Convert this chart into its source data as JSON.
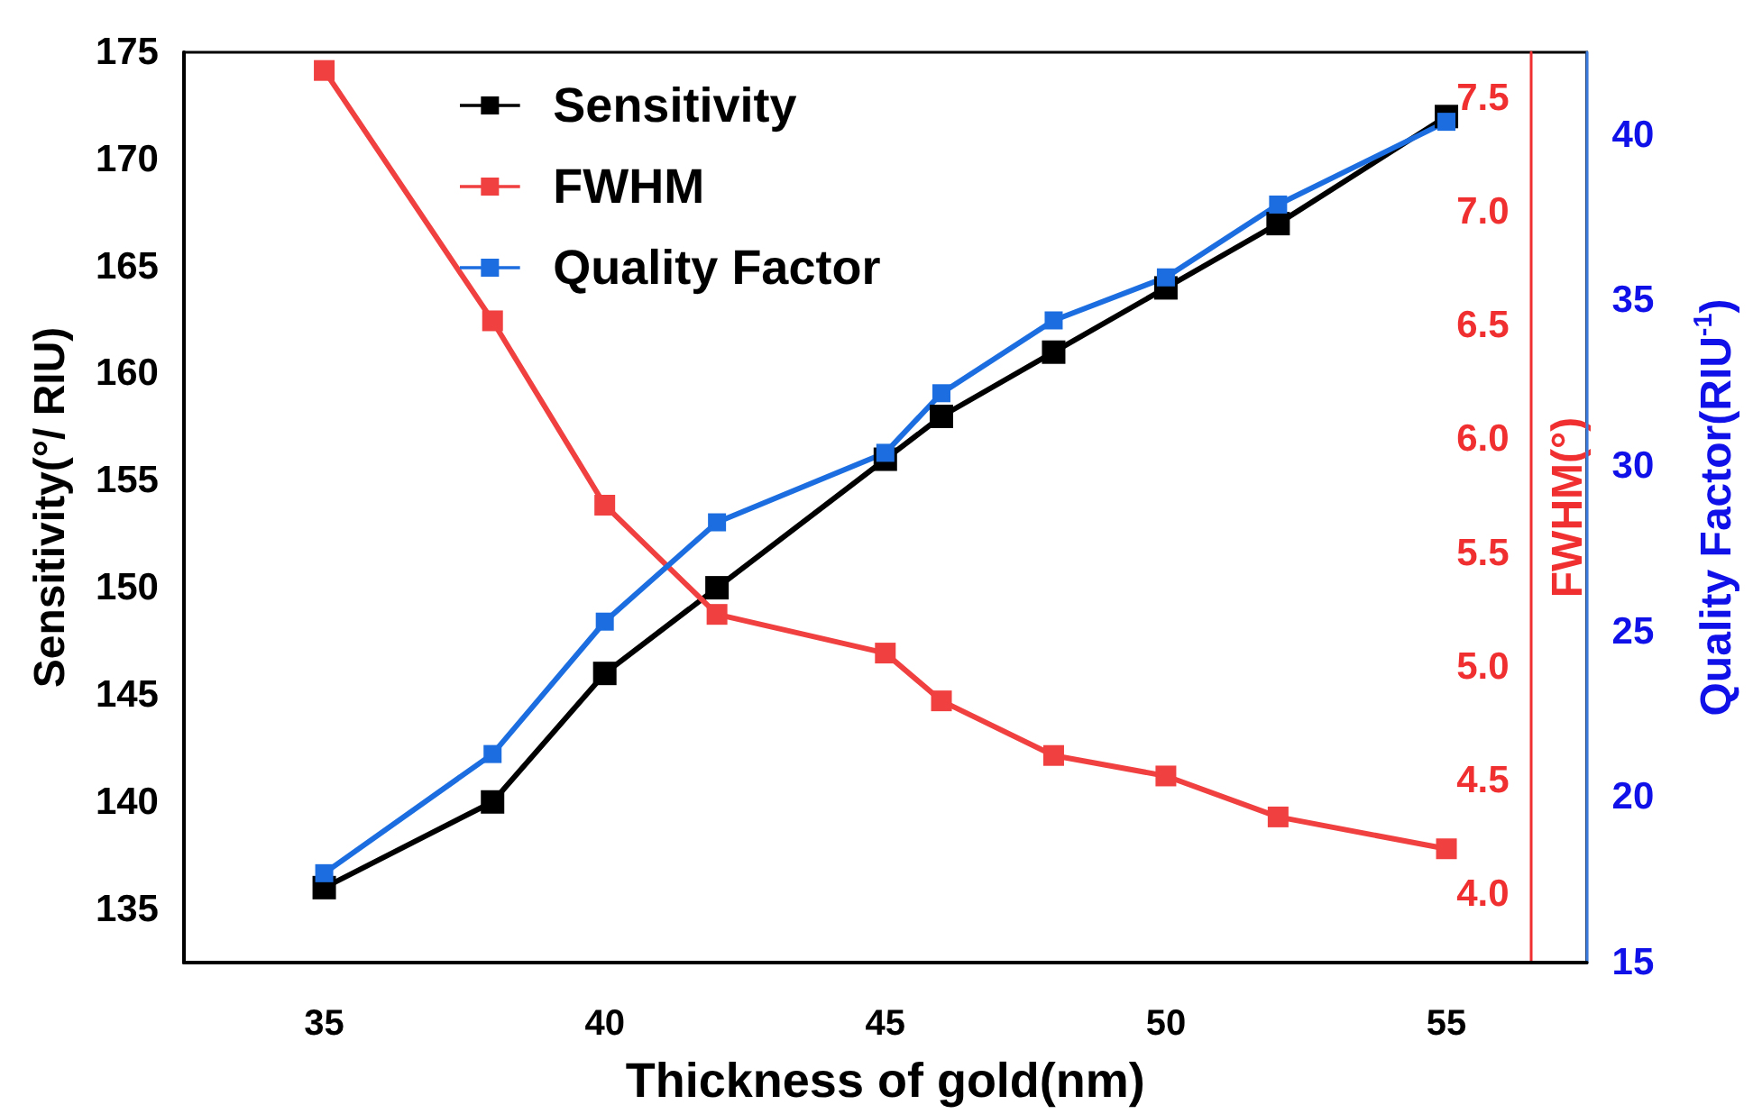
{
  "chart_data": {
    "type": "line",
    "xlabel": "Thickness of gold(nm)",
    "ylabel": "Sensitivity(°/ RIU)",
    "y2label": "FWHM(°)",
    "y3label": "Quality Factor(RIU$^{-1}$)",
    "x": [
      35,
      38,
      40,
      42,
      45,
      46,
      48,
      50,
      52,
      55
    ],
    "series": [
      {
        "name": "Sensitivity",
        "color": "#000000",
        "values": [
          136,
          140,
          146,
          150,
          156,
          158,
          161,
          164,
          167,
          172
        ]
      },
      {
        "name": "FWHM",
        "color": "#f04040",
        "axis": "y2",
        "values": [
          7.62,
          6.52,
          5.71,
          5.23,
          5.06,
          4.85,
          4.61,
          4.52,
          4.34,
          4.2
        ]
      },
      {
        "name": "Quality Factor",
        "color": "#1c6ee0",
        "axis": "y3",
        "values": [
          17.7,
          21.3,
          25.3,
          28.3,
          30.4,
          32.2,
          34.4,
          35.7,
          37.9,
          40.4
        ]
      }
    ],
    "xlim": [
      32.5,
      57.5
    ],
    "xticks": [
      35,
      40,
      45,
      50,
      55
    ],
    "ylim": [
      132.5,
      175
    ],
    "yticks": [
      135,
      140,
      145,
      150,
      155,
      160,
      165,
      170,
      175
    ],
    "y2lim": [
      3.7,
      7.7
    ],
    "y2ticks": [
      {
        "value": 4,
        "label": "4.0"
      },
      {
        "value": 4.5,
        "label": "4.5"
      },
      {
        "value": 5,
        "label": "5.0"
      },
      {
        "value": 5.5,
        "label": "5.5"
      },
      {
        "value": 6,
        "label": "6.0"
      },
      {
        "value": 6.5,
        "label": "6.5"
      },
      {
        "value": 7,
        "label": "7.0"
      },
      {
        "value": 7.5,
        "label": "7.5"
      }
    ],
    "y3lim": [
      15,
      42.5
    ],
    "y3ticks": [
      15,
      20,
      25,
      30,
      35,
      40
    ],
    "grid": false,
    "legend": "top left",
    "marker": "square",
    "line_style": "solid"
  }
}
